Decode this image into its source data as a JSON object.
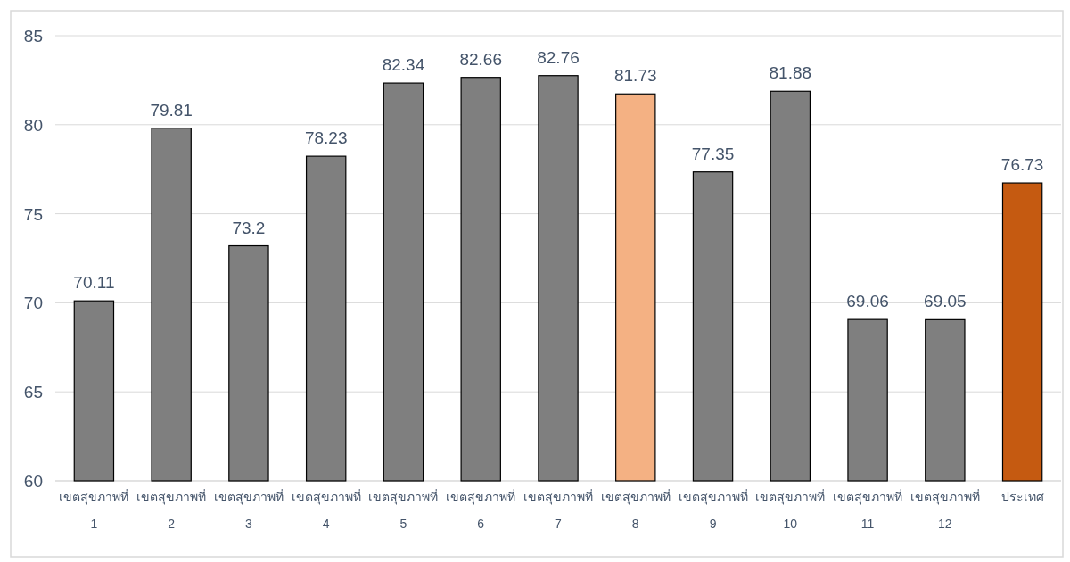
{
  "chart_data": {
    "type": "bar",
    "categories": [
      "เขตสุขภาพที่ 1",
      "เขตสุขภาพที่ 2",
      "เขตสุขภาพที่ 3",
      "เขตสุขภาพที่ 4",
      "เขตสุขภาพที่ 5",
      "เขตสุขภาพที่ 6",
      "เขตสุขภาพที่ 7",
      "เขตสุขภาพที่ 8",
      "เขตสุขภาพที่ 9",
      "เขตสุขภาพที่ 10",
      "เขตสุขภาพที่ 11",
      "เขตสุขภาพที่ 12",
      "ประเทศ"
    ],
    "values": [
      70.11,
      79.81,
      73.2,
      78.23,
      82.34,
      82.66,
      82.76,
      81.73,
      77.35,
      81.88,
      69.06,
      69.05,
      76.73
    ],
    "colors": [
      "#7f7f7f",
      "#7f7f7f",
      "#7f7f7f",
      "#7f7f7f",
      "#7f7f7f",
      "#7f7f7f",
      "#7f7f7f",
      "#f4b183",
      "#7f7f7f",
      "#7f7f7f",
      "#7f7f7f",
      "#7f7f7f",
      "#c55a11"
    ],
    "ylim": [
      60,
      85
    ],
    "yticks": [
      60,
      65,
      70,
      75,
      80,
      85
    ],
    "grid": "y",
    "data_labels": true
  }
}
